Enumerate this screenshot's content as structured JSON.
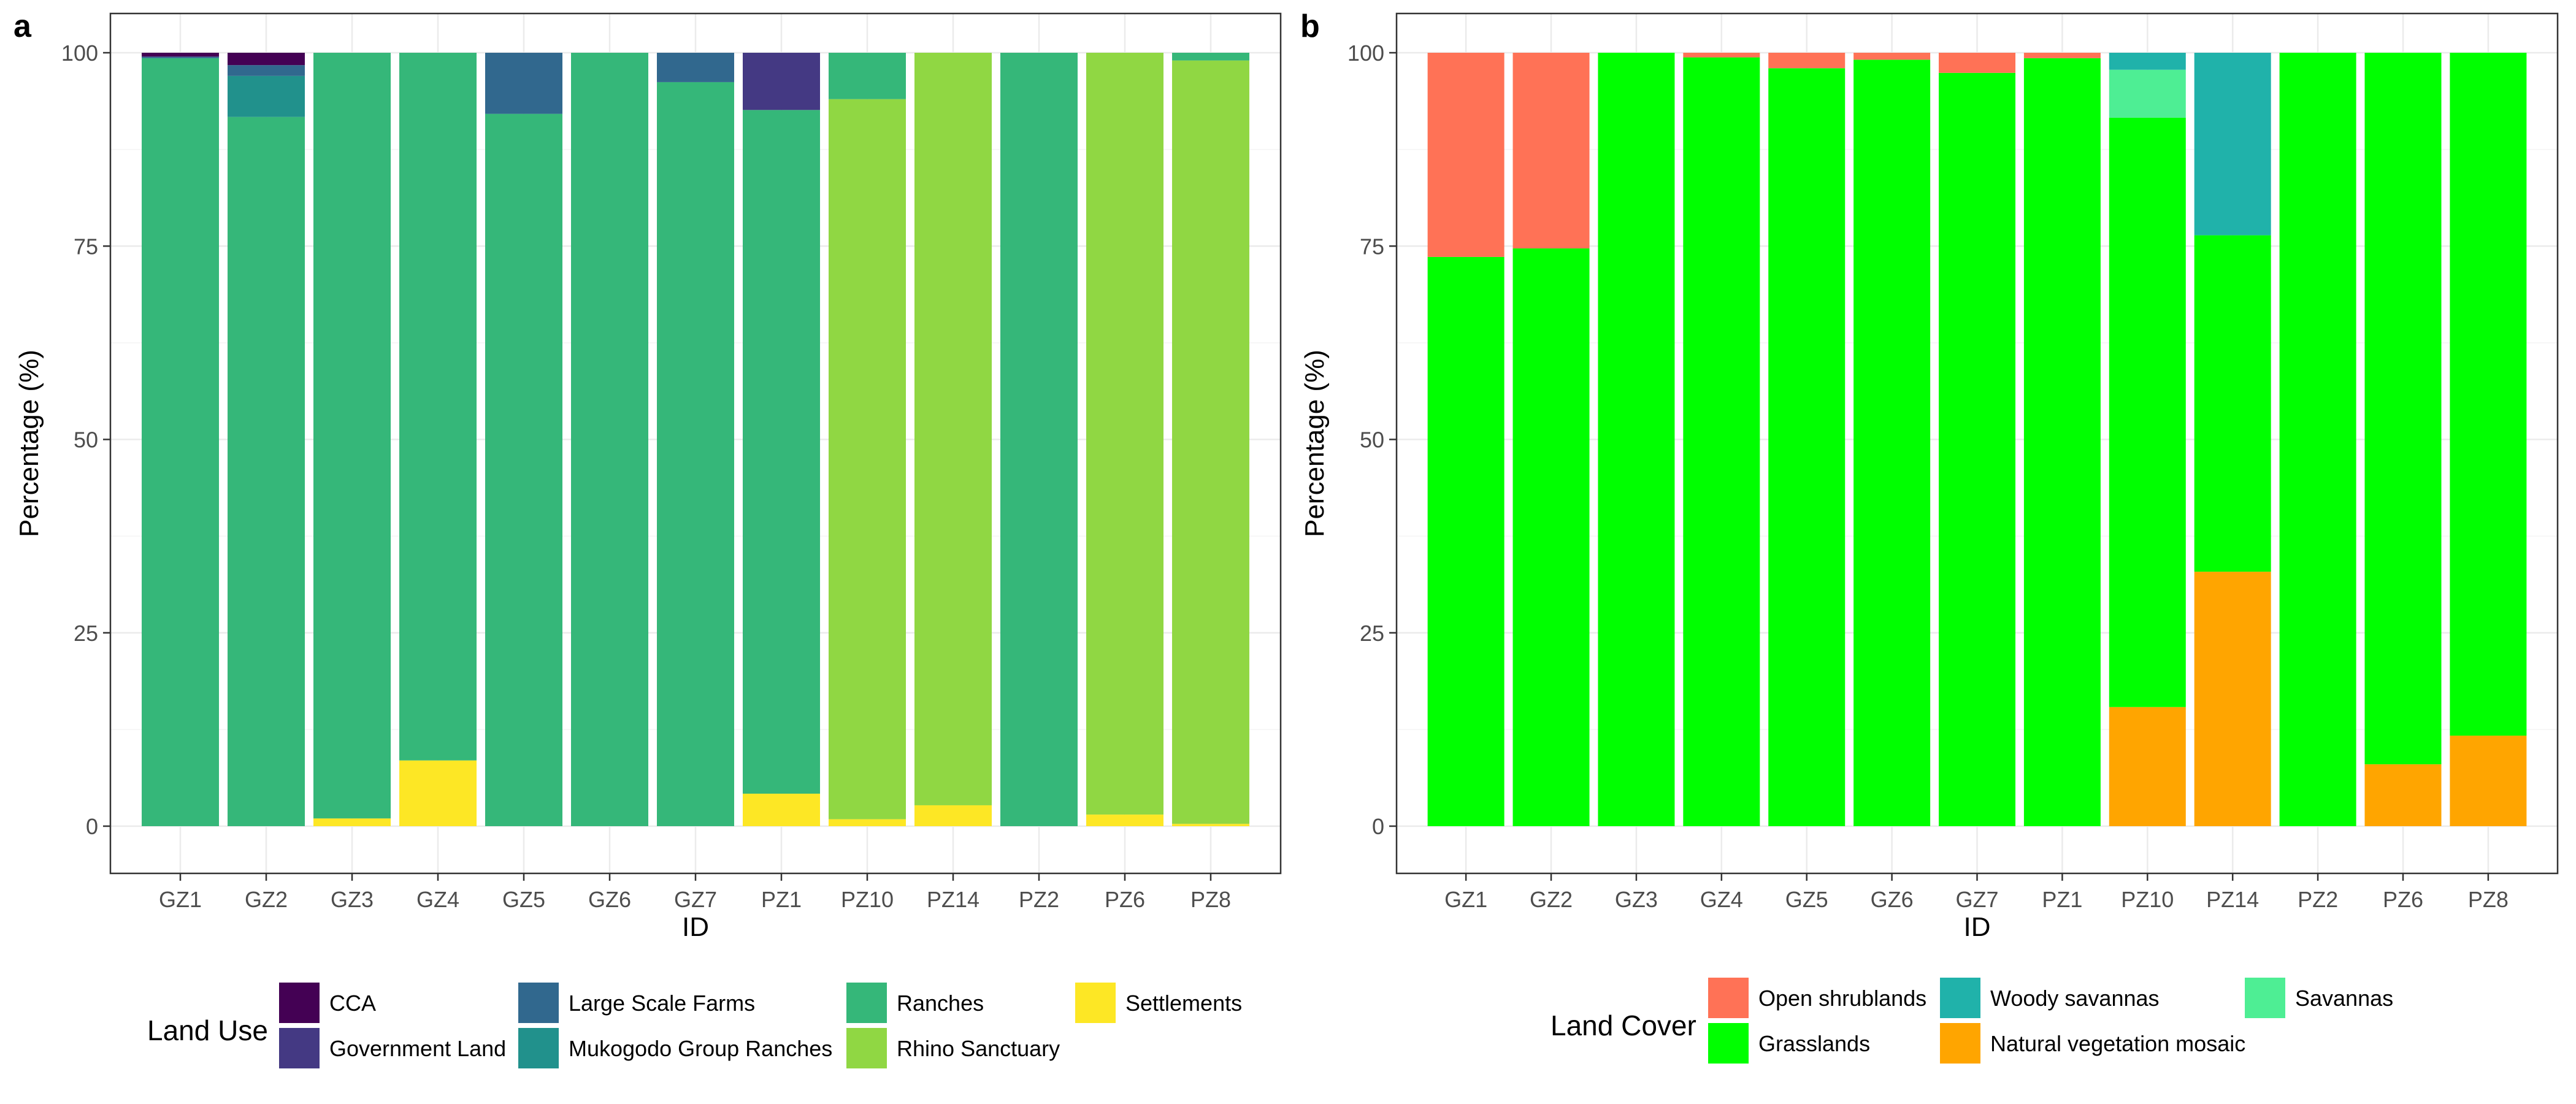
{
  "chart_data": [
    {
      "type": "bar",
      "stacked": true,
      "panel_label": "a",
      "title": "",
      "xlabel": "ID",
      "ylabel": "Percentage (%)",
      "ylim": [
        0,
        100
      ],
      "yticks": [
        "0",
        "25",
        "50",
        "75",
        "100"
      ],
      "grid": true,
      "legend_position": "bottom",
      "legend_title": "Land Use",
      "categories": [
        "GZ1",
        "GZ2",
        "GZ3",
        "GZ4",
        "GZ5",
        "GZ6",
        "GZ7",
        "PZ1",
        "PZ10",
        "PZ14",
        "PZ2",
        "PZ6",
        "PZ8"
      ],
      "series": [
        {
          "name": "CCA",
          "color": "#440154",
          "values": [
            0.5,
            1.6,
            0,
            0,
            0,
            0,
            0,
            0,
            0,
            0,
            0,
            0,
            0
          ]
        },
        {
          "name": "Government Land",
          "color": "#443983",
          "values": [
            0,
            0,
            0,
            0,
            0,
            0,
            0,
            7.4,
            0,
            0,
            0,
            0,
            0
          ]
        },
        {
          "name": "Large Scale Farms",
          "color": "#31688e",
          "values": [
            0.2,
            1.4,
            0,
            0,
            7.9,
            0,
            3.8,
            0,
            0,
            0,
            0,
            0,
            0
          ]
        },
        {
          "name": "Mukogodo Group Ranches",
          "color": "#21918c",
          "values": [
            0,
            5.3,
            0,
            0,
            0,
            0,
            0,
            0,
            0,
            0,
            0,
            0,
            0
          ]
        },
        {
          "name": "Ranches",
          "color": "#35b779",
          "values": [
            99.3,
            91.7,
            99.0,
            91.5,
            92.1,
            100,
            96.2,
            88.4,
            6.0,
            0,
            100,
            0,
            1.0
          ]
        },
        {
          "name": "Rhino Sanctuary",
          "color": "#90d743",
          "values": [
            0,
            0,
            0,
            0,
            0,
            0,
            0,
            0,
            93.1,
            97.3,
            0,
            98.5,
            98.7
          ]
        },
        {
          "name": "Settlements",
          "color": "#fde725",
          "values": [
            0,
            0,
            1.0,
            8.5,
            0,
            0,
            0,
            4.2,
            0.9,
            2.7,
            0,
            1.5,
            0.3
          ]
        }
      ],
      "legend_rows": [
        [
          "CCA",
          "Large Scale Farms",
          "Ranches",
          "Settlements"
        ],
        [
          "Government Land",
          "Mukogodo Group Ranches",
          "Rhino Sanctuary"
        ]
      ]
    },
    {
      "type": "bar",
      "stacked": true,
      "panel_label": "b",
      "title": "",
      "xlabel": "ID",
      "ylabel": "Percentage (%)",
      "ylim": [
        0,
        100
      ],
      "yticks": [
        "0",
        "25",
        "50",
        "75",
        "100"
      ],
      "grid": true,
      "legend_position": "bottom",
      "legend_title": "Land Cover",
      "categories": [
        "GZ1",
        "GZ2",
        "GZ3",
        "GZ4",
        "GZ5",
        "GZ6",
        "GZ7",
        "PZ1",
        "PZ10",
        "PZ14",
        "PZ2",
        "PZ6",
        "PZ8"
      ],
      "series": [
        {
          "name": "Open shrublands",
          "color": "#ff7256",
          "values": [
            26.4,
            25.3,
            0,
            0.6,
            2.0,
            0.9,
            2.6,
            0.7,
            0,
            0,
            0,
            0,
            0
          ]
        },
        {
          "name": "Woody savannas",
          "color": "#20b2aa",
          "values": [
            0,
            0,
            0,
            0,
            0,
            0,
            0,
            0,
            2.2,
            23.6,
            0,
            0,
            0
          ]
        },
        {
          "name": "Savannas",
          "color": "#4eee94",
          "values": [
            0,
            0,
            0,
            0,
            0,
            0,
            0,
            0,
            6.2,
            0,
            0,
            0,
            0
          ]
        },
        {
          "name": "Grasslands",
          "color": "#00ff00",
          "values": [
            73.6,
            74.7,
            100,
            99.4,
            98.0,
            99.1,
            97.4,
            99.3,
            76.2,
            43.5,
            100,
            92.0,
            88.3
          ]
        },
        {
          "name": "Natural vegetation mosaic",
          "color": "#ffa500",
          "values": [
            0,
            0,
            0,
            0,
            0,
            0,
            0,
            0,
            15.4,
            32.9,
            0,
            8.0,
            11.7
          ]
        }
      ],
      "legend_rows": [
        [
          "Open shrublands",
          "Woody savannas",
          "Savannas"
        ],
        [
          "Grasslands",
          "Natural vegetation mosaic"
        ]
      ]
    }
  ]
}
